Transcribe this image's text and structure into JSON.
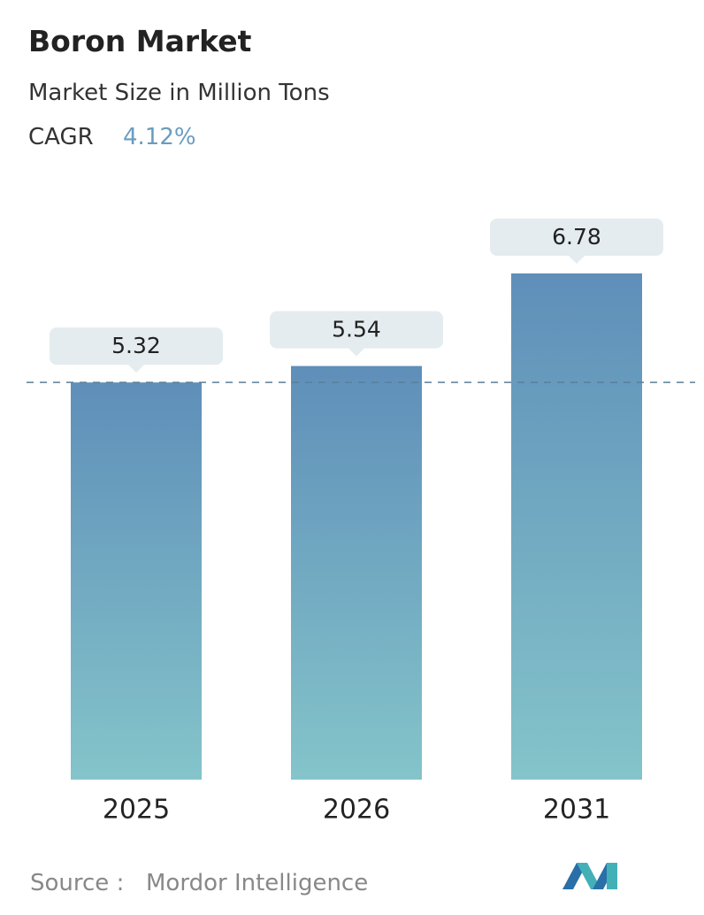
{
  "chart_data": {
    "type": "bar",
    "title": "Boron Market",
    "subtitle": "Market Size in Million Tons",
    "cagr_label": "CAGR",
    "cagr_value": "4.12%",
    "categories": [
      "2025",
      "2026",
      "2031"
    ],
    "values": [
      5.32,
      5.54,
      6.78
    ],
    "source_label": "Source :",
    "source": "Mordor Intelligence"
  }
}
